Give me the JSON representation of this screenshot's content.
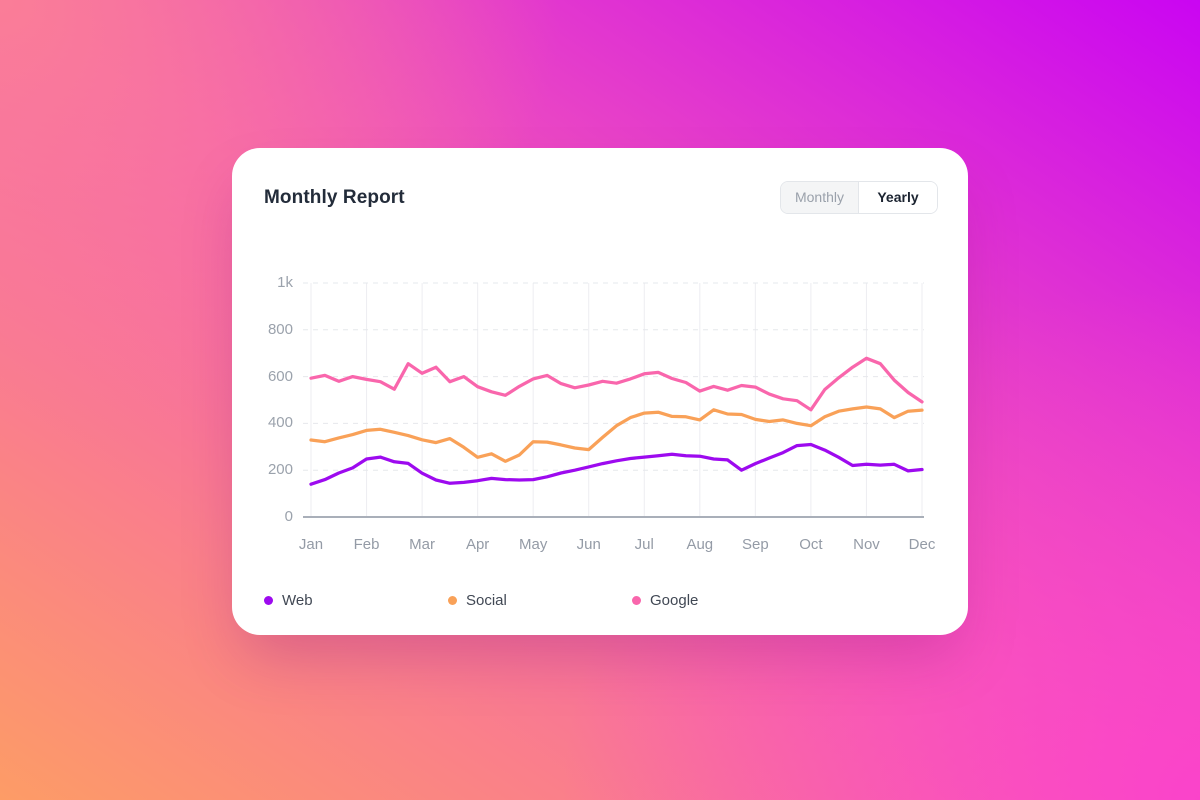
{
  "card": {
    "title": "Monthly Report",
    "toggle": {
      "options": [
        {
          "label": "Monthly",
          "selected": false
        },
        {
          "label": "Yearly",
          "selected": true
        }
      ]
    }
  },
  "chart_data": {
    "type": "line",
    "title": "Monthly Report",
    "xlabel": "",
    "ylabel": "",
    "ylim": [
      0,
      1000
    ],
    "grid": true,
    "legend_position": "bottom",
    "points_per_month": 4,
    "categories": [
      "Jan",
      "Feb",
      "Mar",
      "Apr",
      "May",
      "Jun",
      "Jul",
      "Aug",
      "Sep",
      "Oct",
      "Nov",
      "Dec"
    ],
    "y_ticks": [
      {
        "label": "0",
        "value": 0
      },
      {
        "label": "200",
        "value": 200
      },
      {
        "label": "400",
        "value": 400
      },
      {
        "label": "600",
        "value": 600
      },
      {
        "label": "800",
        "value": 800
      },
      {
        "label": "1k",
        "value": 1000
      }
    ],
    "series": [
      {
        "name": "Web",
        "color": "#9d0aef",
        "values": [
          140,
          160,
          188,
          210,
          248,
          256,
          236,
          229,
          187,
          158,
          144,
          148,
          155,
          165,
          160,
          158,
          160,
          172,
          188,
          200,
          214,
          228,
          240,
          250,
          256,
          262,
          268,
          262,
          260,
          248,
          244,
          200,
          228,
          252,
          275,
          305,
          310,
          286,
          255,
          220,
          225,
          222,
          225,
          197,
          203
        ]
      },
      {
        "name": "Social",
        "color": "#f9a158",
        "values": [
          329,
          322,
          338,
          352,
          370,
          375,
          362,
          348,
          330,
          318,
          335,
          298,
          255,
          270,
          238,
          265,
          322,
          320,
          308,
          295,
          288,
          340,
          390,
          425,
          444,
          448,
          430,
          428,
          415,
          458,
          440,
          438,
          417,
          408,
          415,
          400,
          390,
          428,
          452,
          462,
          470,
          462,
          425,
          452,
          457
        ]
      },
      {
        "name": "Google",
        "color": "#f966ac",
        "values": [
          593,
          605,
          580,
          600,
          588,
          578,
          546,
          655,
          614,
          640,
          578,
          600,
          557,
          535,
          520,
          558,
          590,
          605,
          570,
          552,
          564,
          580,
          572,
          590,
          612,
          618,
          592,
          575,
          538,
          558,
          542,
          562,
          555,
          525,
          505,
          497,
          458,
          545,
          595,
          640,
          678,
          655,
          585,
          532,
          492
        ]
      }
    ],
    "axis_colors": {
      "grid_dashed": "#e6e8ec",
      "grid_vertical": "#ededf1",
      "axis_line": "#a9afb9",
      "tick_text": "#9ba2ac"
    }
  }
}
